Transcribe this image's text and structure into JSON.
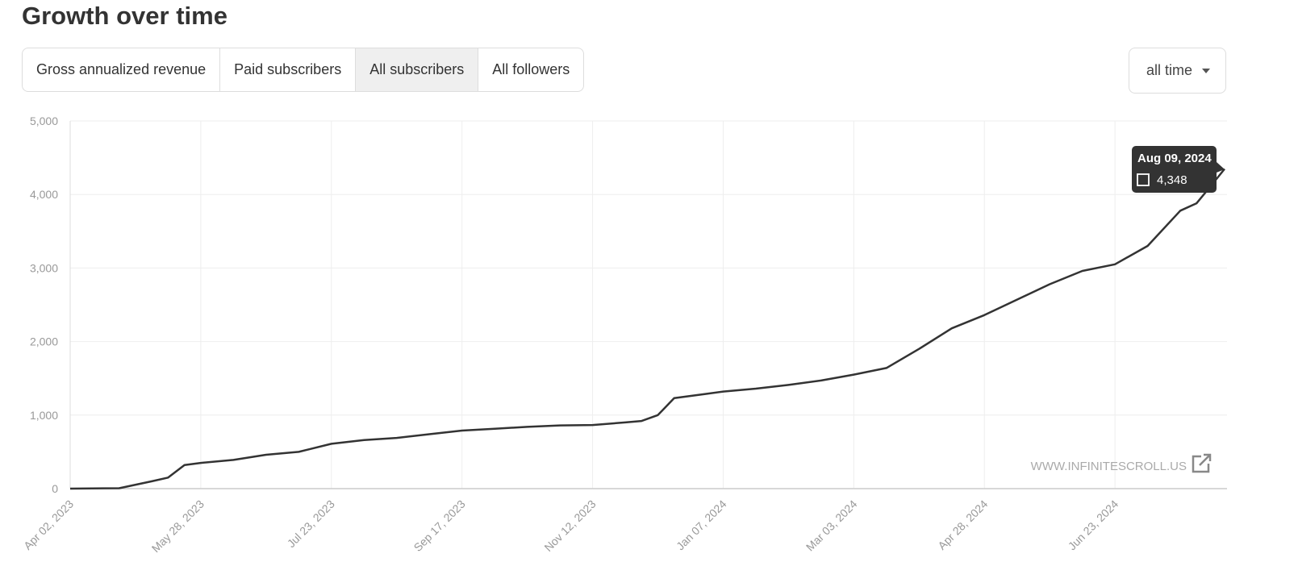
{
  "header": {
    "title": "Growth over time"
  },
  "tabs": [
    "Gross annualized revenue",
    "Paid subscribers",
    "All subscribers",
    "All followers"
  ],
  "active_tab": 2,
  "range_selector": "all time",
  "chart_data": {
    "type": "line",
    "x": [
      "2023-04-02",
      "2023-04-23",
      "2023-05-07",
      "2023-05-14",
      "2023-05-21",
      "2023-05-28",
      "2023-06-11",
      "2023-06-25",
      "2023-07-09",
      "2023-07-23",
      "2023-08-06",
      "2023-08-20",
      "2023-09-03",
      "2023-09-17",
      "2023-10-01",
      "2023-10-15",
      "2023-10-29",
      "2023-11-12",
      "2023-11-26",
      "2023-12-03",
      "2023-12-10",
      "2023-12-17",
      "2023-12-31",
      "2024-01-07",
      "2024-01-21",
      "2024-02-04",
      "2024-02-18",
      "2024-03-03",
      "2024-03-17",
      "2024-03-31",
      "2024-04-14",
      "2024-04-28",
      "2024-05-12",
      "2024-05-26",
      "2024-06-09",
      "2024-06-23",
      "2024-07-07",
      "2024-07-21",
      "2024-07-28",
      "2024-08-04",
      "2024-08-09"
    ],
    "series": [
      {
        "name": "All subscribers",
        "color": "#333333",
        "values": [
          0,
          5,
          100,
          150,
          320,
          350,
          390,
          460,
          500,
          610,
          660,
          690,
          740,
          790,
          815,
          840,
          860,
          865,
          900,
          920,
          1000,
          1230,
          1290,
          1320,
          1360,
          1410,
          1470,
          1550,
          1640,
          1900,
          2180,
          2360,
          2570,
          2780,
          2960,
          3050,
          3300,
          3780,
          3880,
          4150,
          4348
        ]
      }
    ],
    "xlim": [
      "2023-04-02",
      "2024-08-09"
    ],
    "xticks": [
      {
        "value": "2023-04-02",
        "label": "Apr 02, 2023"
      },
      {
        "value": "2023-05-28",
        "label": "May 28, 2023"
      },
      {
        "value": "2023-07-23",
        "label": "Jul 23, 2023"
      },
      {
        "value": "2023-09-17",
        "label": "Sep 17, 2023"
      },
      {
        "value": "2023-11-12",
        "label": "Nov 12, 2023"
      },
      {
        "value": "2024-01-07",
        "label": "Jan 07, 2024"
      },
      {
        "value": "2024-03-03",
        "label": "Mar 03, 2024"
      },
      {
        "value": "2024-04-28",
        "label": "Apr 28, 2024"
      },
      {
        "value": "2024-06-23",
        "label": "Jun 23, 2024"
      }
    ],
    "ylim": [
      0,
      5000
    ],
    "yticks": [
      0,
      {
        "value": 1000,
        "label": "1,000"
      },
      {
        "value": 2000,
        "label": "2,000"
      },
      {
        "value": 3000,
        "label": "3,000"
      },
      {
        "value": 4000,
        "label": "4,000"
      },
      {
        "value": 5000,
        "label": "5,000"
      }
    ],
    "grid": true,
    "tooltip": {
      "date": "Aug 09, 2024",
      "value": 4348,
      "label": "4,348"
    },
    "annotation": "WWW.INFINITESCROLL.US"
  }
}
